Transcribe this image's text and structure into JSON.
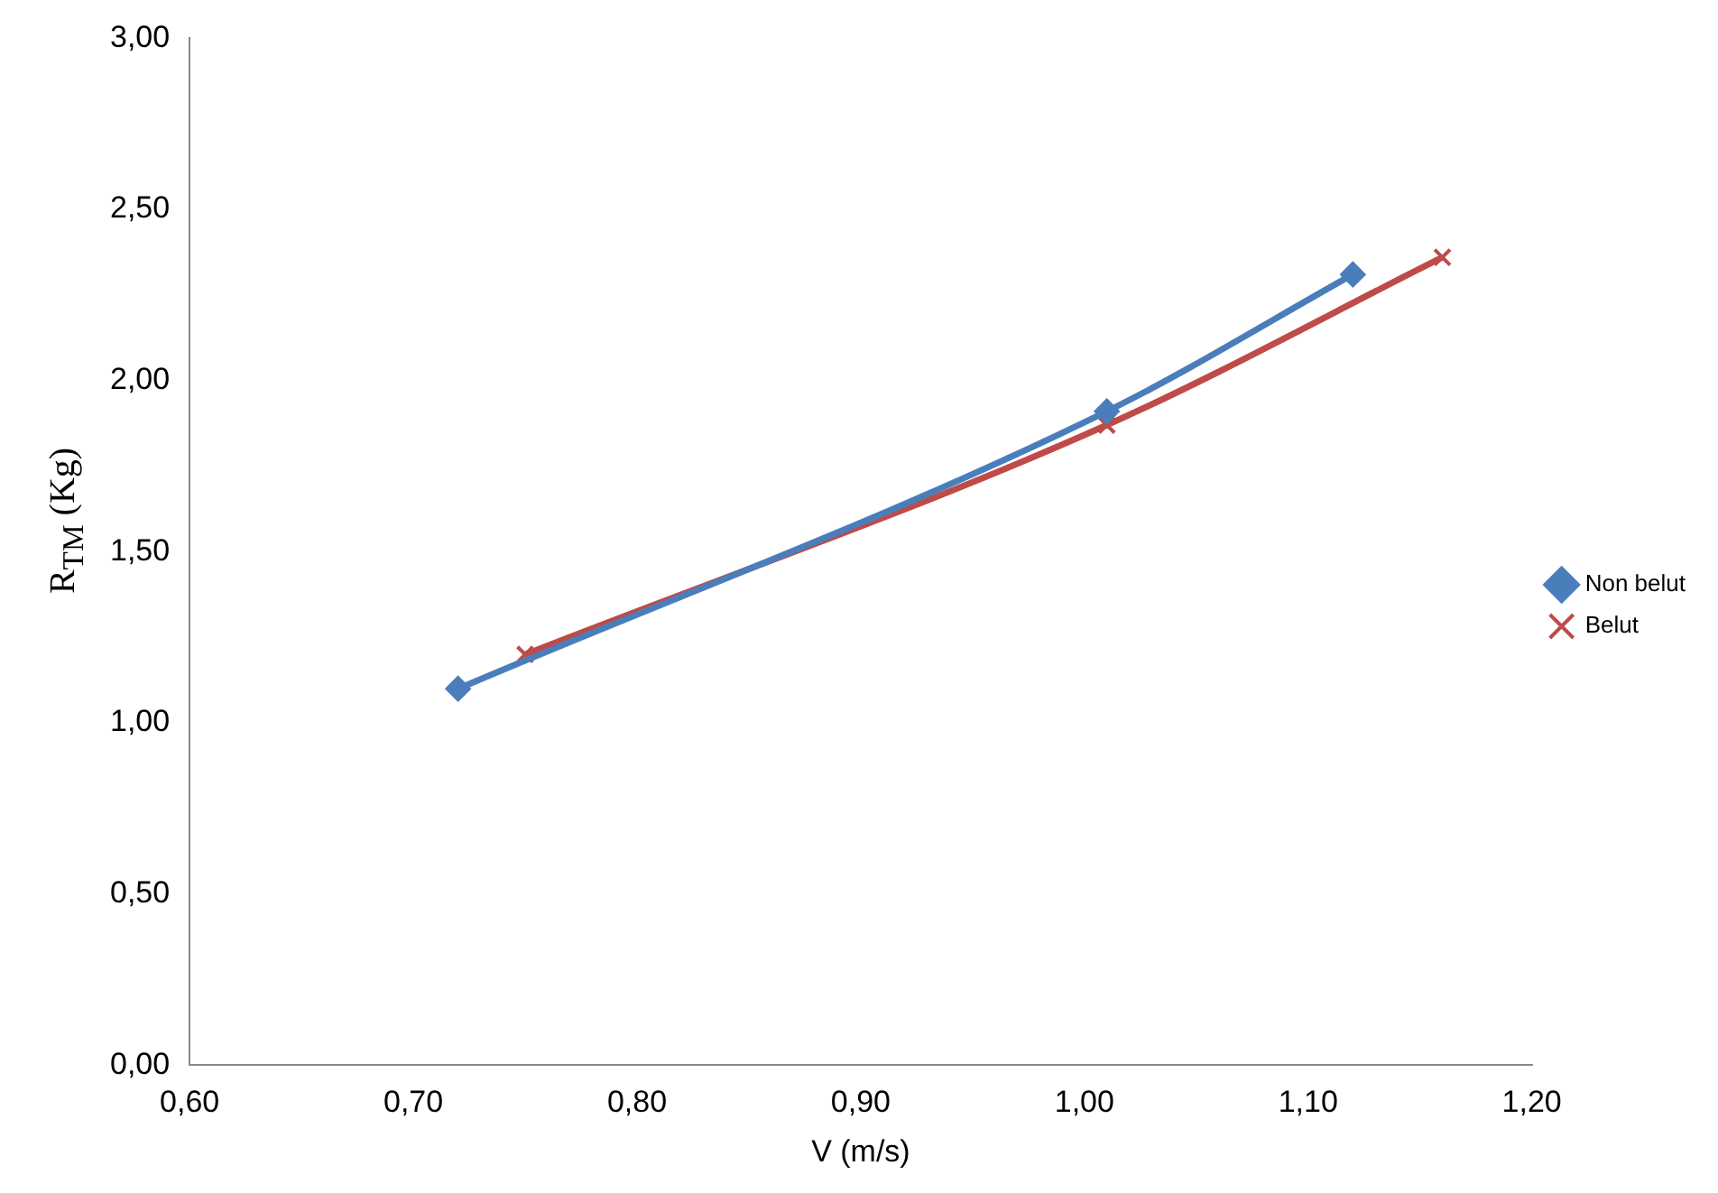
{
  "chart_data": {
    "type": "line",
    "xlabel": "V (m/s)",
    "ylabel": "R$_{TM}$  (Kg)",
    "xlim": [
      0.6,
      1.2
    ],
    "xticks": [
      {
        "value": 0.6,
        "label": "0,60"
      },
      {
        "value": 0.7,
        "label": "0,70"
      },
      {
        "value": 0.8,
        "label": "0,80"
      },
      {
        "value": 0.9,
        "label": "0,90"
      },
      {
        "value": 1.0,
        "label": "1,00"
      },
      {
        "value": 1.1,
        "label": "1,10"
      },
      {
        "value": 1.2,
        "label": "1,20"
      }
    ],
    "ylim": [
      0,
      3
    ],
    "yticks": [
      {
        "value": 0,
        "label": "0,00"
      },
      {
        "value": 0.5,
        "label": "0,50"
      },
      {
        "value": 1.0,
        "label": "1,00"
      },
      {
        "value": 1.5,
        "label": "1,50"
      },
      {
        "value": 2.0,
        "label": "2,00"
      },
      {
        "value": 2.5,
        "label": "2,50"
      },
      {
        "value": 3.0,
        "label": "3,00"
      }
    ],
    "grid": false,
    "legend": "right",
    "series": [
      {
        "name": "Non belut",
        "color": "#4a7ebb",
        "marker": "diamond",
        "x": [
          0.72,
          1.01,
          1.12
        ],
        "values": [
          1.1,
          1.91,
          2.31
        ]
      },
      {
        "name": "Belut",
        "color": "#be4b48",
        "marker": "cross",
        "x": [
          0.75,
          1.01,
          1.16
        ],
        "values": [
          1.2,
          1.87,
          2.36
        ]
      }
    ]
  }
}
